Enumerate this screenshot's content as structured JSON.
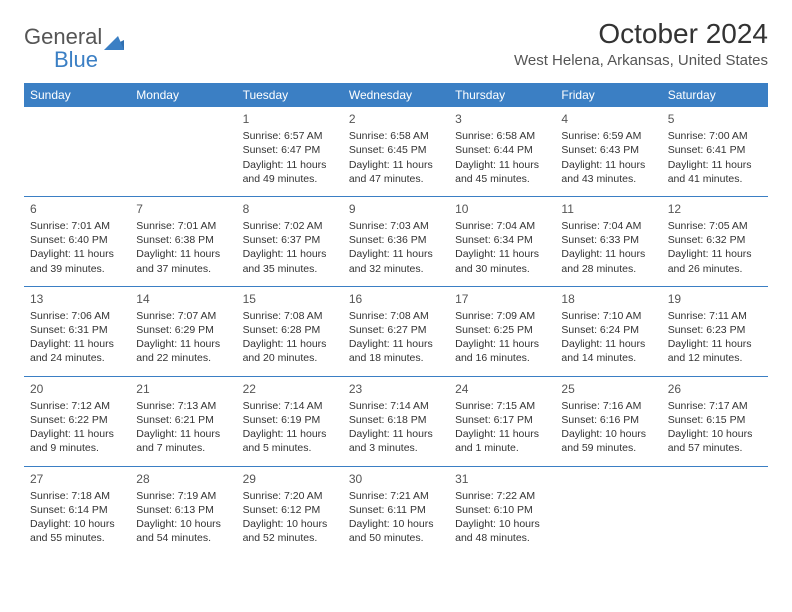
{
  "logo": {
    "general": "General",
    "blue": "Blue"
  },
  "title": "October 2024",
  "location": "West Helena, Arkansas, United States",
  "header_bg": "#3b7fc4",
  "weekdays": [
    "Sunday",
    "Monday",
    "Tuesday",
    "Wednesday",
    "Thursday",
    "Friday",
    "Saturday"
  ],
  "weeks": [
    [
      null,
      null,
      {
        "n": "1",
        "sr": "Sunrise: 6:57 AM",
        "ss": "Sunset: 6:47 PM",
        "dl": "Daylight: 11 hours and 49 minutes."
      },
      {
        "n": "2",
        "sr": "Sunrise: 6:58 AM",
        "ss": "Sunset: 6:45 PM",
        "dl": "Daylight: 11 hours and 47 minutes."
      },
      {
        "n": "3",
        "sr": "Sunrise: 6:58 AM",
        "ss": "Sunset: 6:44 PM",
        "dl": "Daylight: 11 hours and 45 minutes."
      },
      {
        "n": "4",
        "sr": "Sunrise: 6:59 AM",
        "ss": "Sunset: 6:43 PM",
        "dl": "Daylight: 11 hours and 43 minutes."
      },
      {
        "n": "5",
        "sr": "Sunrise: 7:00 AM",
        "ss": "Sunset: 6:41 PM",
        "dl": "Daylight: 11 hours and 41 minutes."
      }
    ],
    [
      {
        "n": "6",
        "sr": "Sunrise: 7:01 AM",
        "ss": "Sunset: 6:40 PM",
        "dl": "Daylight: 11 hours and 39 minutes."
      },
      {
        "n": "7",
        "sr": "Sunrise: 7:01 AM",
        "ss": "Sunset: 6:38 PM",
        "dl": "Daylight: 11 hours and 37 minutes."
      },
      {
        "n": "8",
        "sr": "Sunrise: 7:02 AM",
        "ss": "Sunset: 6:37 PM",
        "dl": "Daylight: 11 hours and 35 minutes."
      },
      {
        "n": "9",
        "sr": "Sunrise: 7:03 AM",
        "ss": "Sunset: 6:36 PM",
        "dl": "Daylight: 11 hours and 32 minutes."
      },
      {
        "n": "10",
        "sr": "Sunrise: 7:04 AM",
        "ss": "Sunset: 6:34 PM",
        "dl": "Daylight: 11 hours and 30 minutes."
      },
      {
        "n": "11",
        "sr": "Sunrise: 7:04 AM",
        "ss": "Sunset: 6:33 PM",
        "dl": "Daylight: 11 hours and 28 minutes."
      },
      {
        "n": "12",
        "sr": "Sunrise: 7:05 AM",
        "ss": "Sunset: 6:32 PM",
        "dl": "Daylight: 11 hours and 26 minutes."
      }
    ],
    [
      {
        "n": "13",
        "sr": "Sunrise: 7:06 AM",
        "ss": "Sunset: 6:31 PM",
        "dl": "Daylight: 11 hours and 24 minutes."
      },
      {
        "n": "14",
        "sr": "Sunrise: 7:07 AM",
        "ss": "Sunset: 6:29 PM",
        "dl": "Daylight: 11 hours and 22 minutes."
      },
      {
        "n": "15",
        "sr": "Sunrise: 7:08 AM",
        "ss": "Sunset: 6:28 PM",
        "dl": "Daylight: 11 hours and 20 minutes."
      },
      {
        "n": "16",
        "sr": "Sunrise: 7:08 AM",
        "ss": "Sunset: 6:27 PM",
        "dl": "Daylight: 11 hours and 18 minutes."
      },
      {
        "n": "17",
        "sr": "Sunrise: 7:09 AM",
        "ss": "Sunset: 6:25 PM",
        "dl": "Daylight: 11 hours and 16 minutes."
      },
      {
        "n": "18",
        "sr": "Sunrise: 7:10 AM",
        "ss": "Sunset: 6:24 PM",
        "dl": "Daylight: 11 hours and 14 minutes."
      },
      {
        "n": "19",
        "sr": "Sunrise: 7:11 AM",
        "ss": "Sunset: 6:23 PM",
        "dl": "Daylight: 11 hours and 12 minutes."
      }
    ],
    [
      {
        "n": "20",
        "sr": "Sunrise: 7:12 AM",
        "ss": "Sunset: 6:22 PM",
        "dl": "Daylight: 11 hours and 9 minutes."
      },
      {
        "n": "21",
        "sr": "Sunrise: 7:13 AM",
        "ss": "Sunset: 6:21 PM",
        "dl": "Daylight: 11 hours and 7 minutes."
      },
      {
        "n": "22",
        "sr": "Sunrise: 7:14 AM",
        "ss": "Sunset: 6:19 PM",
        "dl": "Daylight: 11 hours and 5 minutes."
      },
      {
        "n": "23",
        "sr": "Sunrise: 7:14 AM",
        "ss": "Sunset: 6:18 PM",
        "dl": "Daylight: 11 hours and 3 minutes."
      },
      {
        "n": "24",
        "sr": "Sunrise: 7:15 AM",
        "ss": "Sunset: 6:17 PM",
        "dl": "Daylight: 11 hours and 1 minute."
      },
      {
        "n": "25",
        "sr": "Sunrise: 7:16 AM",
        "ss": "Sunset: 6:16 PM",
        "dl": "Daylight: 10 hours and 59 minutes."
      },
      {
        "n": "26",
        "sr": "Sunrise: 7:17 AM",
        "ss": "Sunset: 6:15 PM",
        "dl": "Daylight: 10 hours and 57 minutes."
      }
    ],
    [
      {
        "n": "27",
        "sr": "Sunrise: 7:18 AM",
        "ss": "Sunset: 6:14 PM",
        "dl": "Daylight: 10 hours and 55 minutes."
      },
      {
        "n": "28",
        "sr": "Sunrise: 7:19 AM",
        "ss": "Sunset: 6:13 PM",
        "dl": "Daylight: 10 hours and 54 minutes."
      },
      {
        "n": "29",
        "sr": "Sunrise: 7:20 AM",
        "ss": "Sunset: 6:12 PM",
        "dl": "Daylight: 10 hours and 52 minutes."
      },
      {
        "n": "30",
        "sr": "Sunrise: 7:21 AM",
        "ss": "Sunset: 6:11 PM",
        "dl": "Daylight: 10 hours and 50 minutes."
      },
      {
        "n": "31",
        "sr": "Sunrise: 7:22 AM",
        "ss": "Sunset: 6:10 PM",
        "dl": "Daylight: 10 hours and 48 minutes."
      },
      null,
      null
    ]
  ]
}
